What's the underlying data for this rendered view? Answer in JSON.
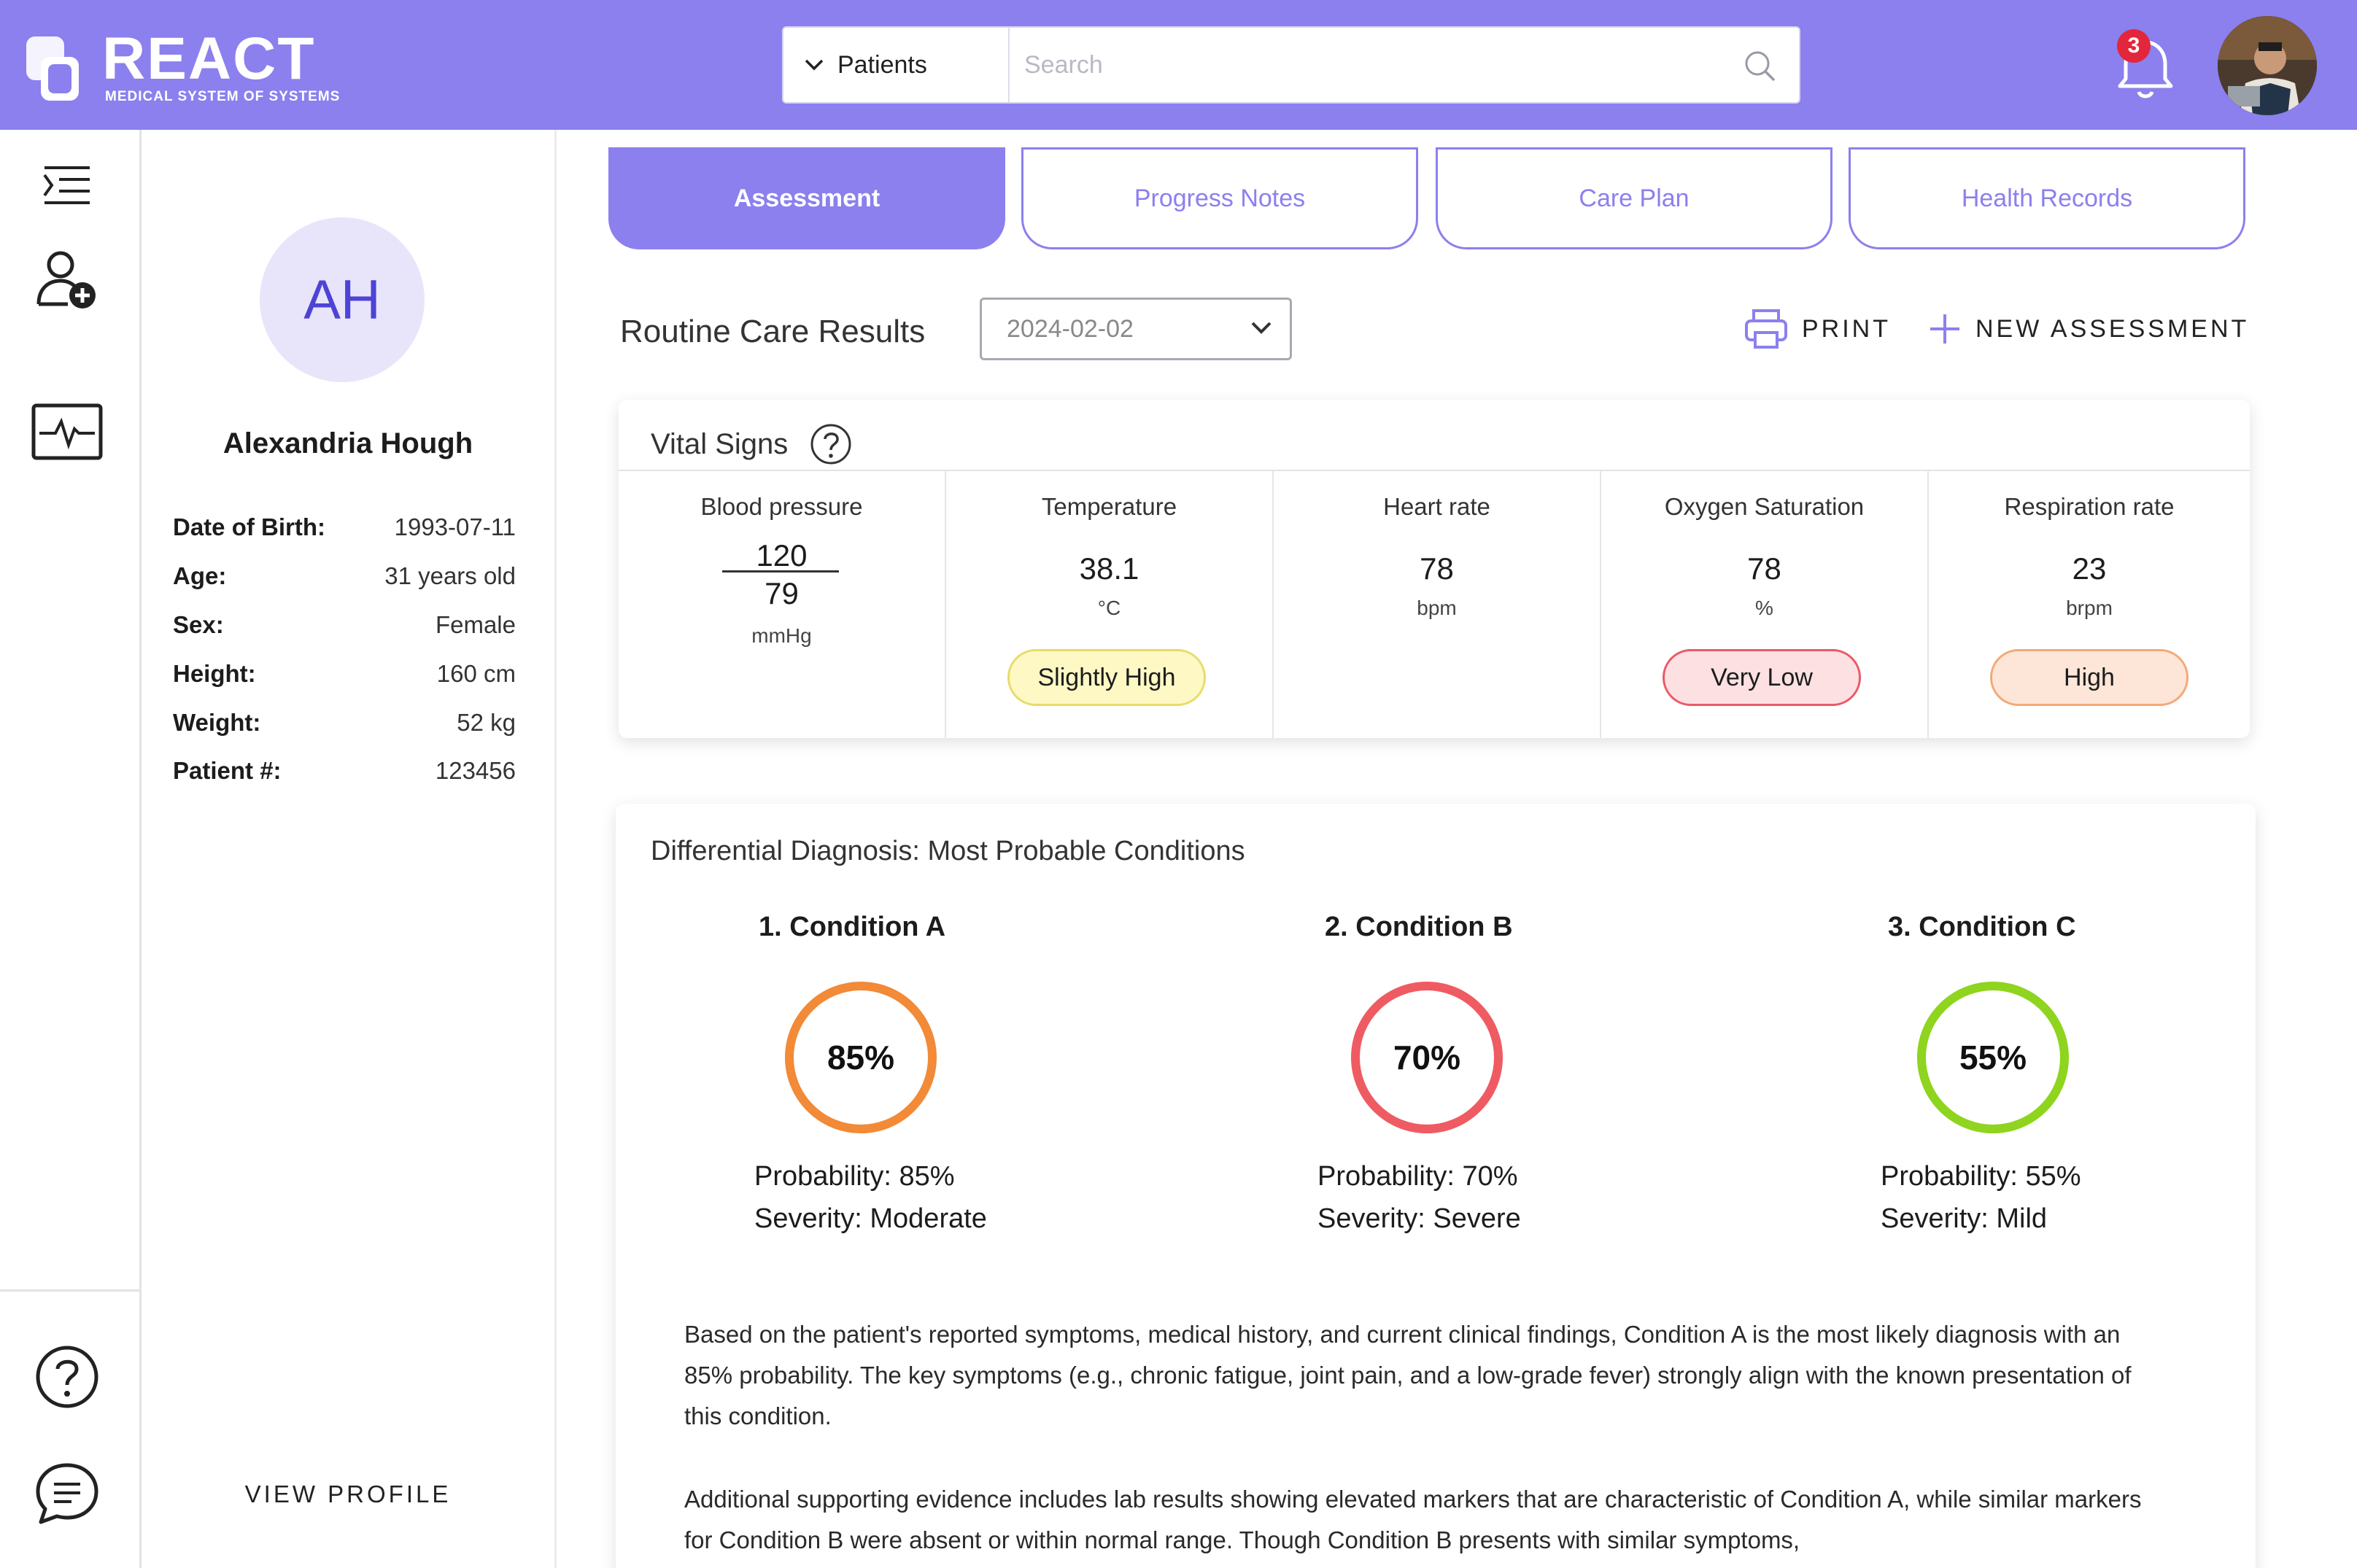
{
  "app": {
    "name": "REACT",
    "subtitle": "MEDICAL SYSTEM OF SYSTEMS"
  },
  "search": {
    "scope": "Patients",
    "placeholder": "Search"
  },
  "notifications": {
    "count": "3"
  },
  "patient": {
    "initials": "AH",
    "name": "Alexandria Hough",
    "fields": [
      {
        "label": "Date of Birth:",
        "value": "1993-07-11"
      },
      {
        "label": "Age:",
        "value": "31 years old"
      },
      {
        "label": "Sex:",
        "value": "Female"
      },
      {
        "label": "Height:",
        "value": "160 cm"
      },
      {
        "label": "Weight:",
        "value": "52 kg"
      },
      {
        "label": "Patient #:",
        "value": "123456"
      }
    ],
    "view_profile": "VIEW PROFILE"
  },
  "tabs": [
    {
      "label": "Assessment",
      "active": true
    },
    {
      "label": "Progress Notes",
      "active": false
    },
    {
      "label": "Care Plan",
      "active": false
    },
    {
      "label": "Health Records",
      "active": false
    }
  ],
  "results": {
    "title": "Routine Care Results",
    "date": "2024-02-02",
    "print_label": "PRINT",
    "new_label": "NEW ASSESSMENT"
  },
  "vitals": {
    "title": "Vital Signs",
    "help": "?",
    "blood_pressure": {
      "label": "Blood pressure",
      "systolic": "120",
      "diastolic": "79",
      "unit": "mmHg"
    },
    "temperature": {
      "label": "Temperature",
      "value": "38.1",
      "unit": "°C",
      "status": "Slightly High"
    },
    "heart_rate": {
      "label": "Heart rate",
      "value": "78",
      "unit": "bpm"
    },
    "oxygen": {
      "label": "Oxygen Saturation",
      "value": "78",
      "unit": "%",
      "status": "Very Low"
    },
    "respiration": {
      "label": "Respiration rate",
      "value": "23",
      "unit": "brpm",
      "status": "High"
    }
  },
  "diagnosis": {
    "title": "Differential Diagnosis: Most Probable Conditions",
    "conditions": [
      {
        "name": "1. Condition A",
        "percent_label": "85%",
        "probability": "Probability: 85%",
        "severity": "Severity: Moderate",
        "color": "#f28a37"
      },
      {
        "name": "2. Condition B",
        "percent_label": "70%",
        "probability": "Probability: 70%",
        "severity": "Severity: Severe",
        "color": "#ef5b62"
      },
      {
        "name": "3. Condition C",
        "percent_label": "55%",
        "probability": "Probability: 55%",
        "severity": "Severity: Mild",
        "color": "#8fd41e"
      }
    ],
    "paragraphs": [
      "Based on the patient's reported symptoms, medical history, and current clinical findings, Condition A is the most likely diagnosis with an 85% probability. The key symptoms (e.g., chronic fatigue, joint pain, and a low-grade fever) strongly align with the known presentation of this condition.",
      "Additional supporting evidence includes lab results showing elevated markers that are characteristic of Condition A, while similar markers for Condition B were absent or within normal range. Though Condition B presents with similar symptoms,"
    ]
  },
  "colors": {
    "accent": "#8b80ee",
    "header": "#8b80ee"
  }
}
